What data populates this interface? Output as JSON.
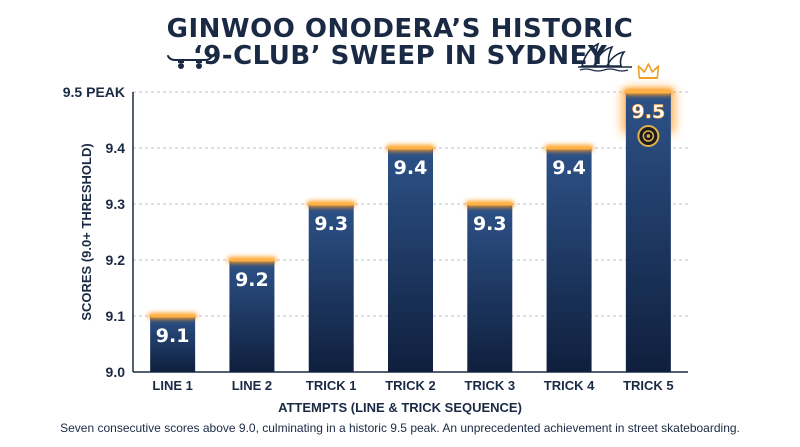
{
  "title_line_1": "GINWOO ONODERA’S HISTORIC",
  "title_line_2": "‘9-CLUB’ SWEEP IN SYDNEY",
  "caption": "Seven consecutive scores above 9.0, culminating in a historic 9.5 peak. An unprecedented achievement in street skateboarding.",
  "colors": {
    "bar_top": "#2d5288",
    "bar_bottom": "#0f1f3d",
    "glow": "#ff9a1f",
    "text": "#1b2a44",
    "crown": "#f2a024"
  },
  "icons": [
    "skateboard-icon",
    "sydney-opera-house-icon",
    "crown-icon",
    "skateboard-wheel-icon"
  ],
  "chart_data": {
    "type": "bar",
    "categories": [
      "LINE 1",
      "LINE 2",
      "TRICK 1",
      "TRICK 2",
      "TRICK 3",
      "TRICK 4",
      "TRICK 5"
    ],
    "values": [
      9.1,
      9.2,
      9.3,
      9.4,
      9.3,
      9.4,
      9.5
    ],
    "data_labels": [
      "9.1",
      "9.2",
      "9.3",
      "9.4",
      "9.3",
      "9.4",
      "9.5"
    ],
    "ylim": [
      9.0,
      9.5
    ],
    "yticks": [
      9.0,
      9.1,
      9.2,
      9.3,
      9.4,
      9.5
    ],
    "ytick_labels": [
      "9.0",
      "9.1",
      "9.2",
      "9.3",
      "9.4",
      "9.5 PEAK"
    ],
    "xlabel": "ATTEMPTS (LINE & TRICK SEQUENCE)",
    "ylabel": "SCORES (9.0+ THRESHOLD)",
    "grid": "horizontal dashed",
    "highlight": "TRICK 5"
  }
}
